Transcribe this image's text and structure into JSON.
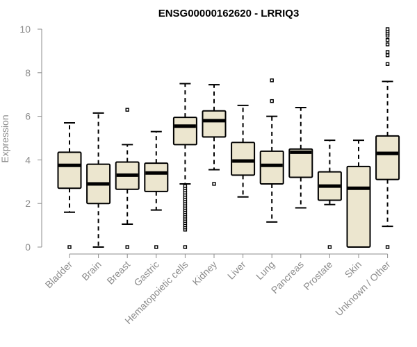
{
  "chart_data": {
    "type": "boxplot",
    "title": "ENSG00000162620 - LRRIQ3",
    "xlabel": "",
    "ylabel": "Expression",
    "ylim": [
      0,
      10
    ],
    "yticks": [
      0,
      2,
      4,
      6,
      8,
      10
    ],
    "categories": [
      "Bladder",
      "Brain",
      "Breast",
      "Gastric",
      "Hematopoietic cells",
      "Kidney",
      "Liver",
      "Lung",
      "Pancreas",
      "Prostate",
      "Skin",
      "Unknown / Other"
    ],
    "boxes": [
      {
        "whisker_low": 1.6,
        "q1": 2.7,
        "median": 3.75,
        "q3": 4.35,
        "whisker_high": 5.7,
        "outliers": [
          0.0
        ]
      },
      {
        "whisker_low": 0.0,
        "q1": 2.0,
        "median": 2.9,
        "q3": 3.8,
        "whisker_high": 6.15,
        "outliers": []
      },
      {
        "whisker_low": 1.05,
        "q1": 2.65,
        "median": 3.3,
        "q3": 3.9,
        "whisker_high": 4.7,
        "outliers": [
          0.0,
          6.3
        ]
      },
      {
        "whisker_low": 1.7,
        "q1": 2.55,
        "median": 3.4,
        "q3": 3.85,
        "whisker_high": 5.3,
        "outliers": [
          0.0
        ]
      },
      {
        "whisker_low": 2.9,
        "q1": 4.7,
        "median": 5.55,
        "q3": 5.95,
        "whisker_high": 7.5,
        "outliers": [
          0.0,
          0.8,
          0.9,
          1.0,
          1.1,
          1.2,
          1.3,
          1.4,
          1.5,
          1.6,
          1.7,
          1.8,
          1.9,
          2.0,
          2.1,
          2.2,
          2.3,
          2.4,
          2.5,
          2.6,
          2.7,
          2.8
        ]
      },
      {
        "whisker_low": 3.55,
        "q1": 5.05,
        "median": 5.8,
        "q3": 6.25,
        "whisker_high": 7.45,
        "outliers": [
          2.9
        ]
      },
      {
        "whisker_low": 2.3,
        "q1": 3.3,
        "median": 3.95,
        "q3": 4.8,
        "whisker_high": 6.5,
        "outliers": []
      },
      {
        "whisker_low": 1.15,
        "q1": 2.9,
        "median": 3.75,
        "q3": 4.4,
        "whisker_high": 6.0,
        "outliers": [
          6.7,
          7.65
        ]
      },
      {
        "whisker_low": 1.8,
        "q1": 3.2,
        "median": 4.35,
        "q3": 4.5,
        "whisker_high": 6.4,
        "outliers": []
      },
      {
        "whisker_low": 1.95,
        "q1": 2.15,
        "median": 2.8,
        "q3": 3.45,
        "whisker_high": 4.9,
        "outliers": [
          0.0
        ]
      },
      {
        "whisker_low": 0.0,
        "q1": 0.0,
        "median": 2.7,
        "q3": 3.7,
        "whisker_high": 4.9,
        "outliers": []
      },
      {
        "whisker_low": 0.95,
        "q1": 3.1,
        "median": 4.3,
        "q3": 5.1,
        "whisker_high": 7.6,
        "outliers": [
          0.0,
          8.4,
          8.8,
          8.95,
          9.3,
          9.5,
          9.7,
          9.8,
          9.9,
          10.0
        ]
      }
    ]
  }
}
